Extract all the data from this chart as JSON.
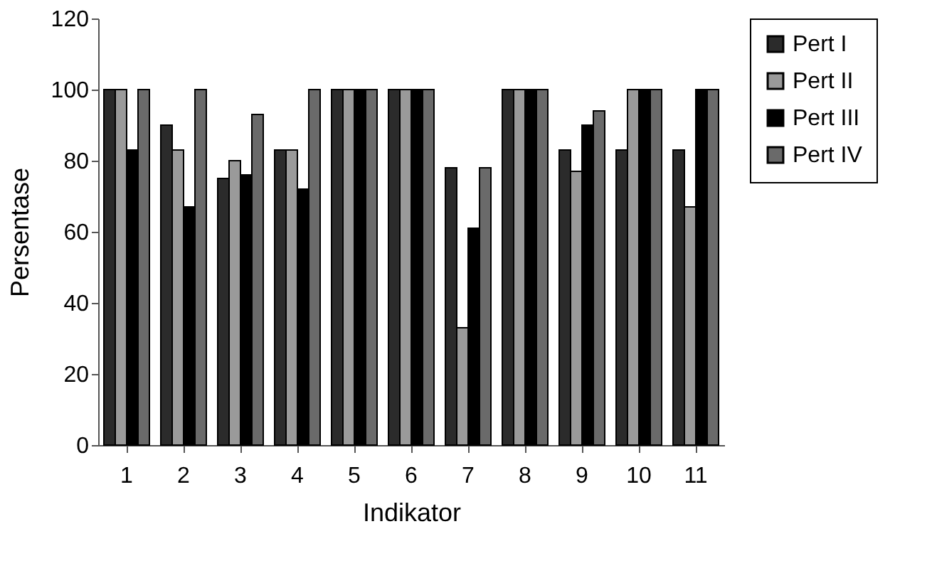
{
  "chart_data": {
    "type": "bar",
    "xlabel": "Indikator",
    "ylabel": "Persentase",
    "categories": [
      "1",
      "2",
      "3",
      "4",
      "5",
      "6",
      "7",
      "8",
      "9",
      "10",
      "11"
    ],
    "series": [
      {
        "name": "Pert I",
        "color": "#2b2b2b",
        "values": [
          100,
          90,
          75,
          83,
          100,
          100,
          78,
          100,
          83,
          83,
          83
        ]
      },
      {
        "name": "Pert II",
        "color": "#9a9a9a",
        "values": [
          100,
          83,
          80,
          83,
          100,
          100,
          33,
          100,
          77,
          100,
          67
        ]
      },
      {
        "name": "Pert III",
        "color": "#000000",
        "values": [
          83,
          67,
          76,
          72,
          100,
          100,
          61,
          100,
          90,
          100,
          100
        ]
      },
      {
        "name": "Pert IV",
        "color": "#6a6a6a",
        "values": [
          100,
          100,
          93,
          100,
          100,
          100,
          78,
          100,
          94,
          100,
          100
        ]
      }
    ],
    "ylim": [
      0,
      120
    ],
    "yticks": [
      0,
      20,
      40,
      60,
      80,
      100,
      120
    ],
    "legend": "right"
  }
}
